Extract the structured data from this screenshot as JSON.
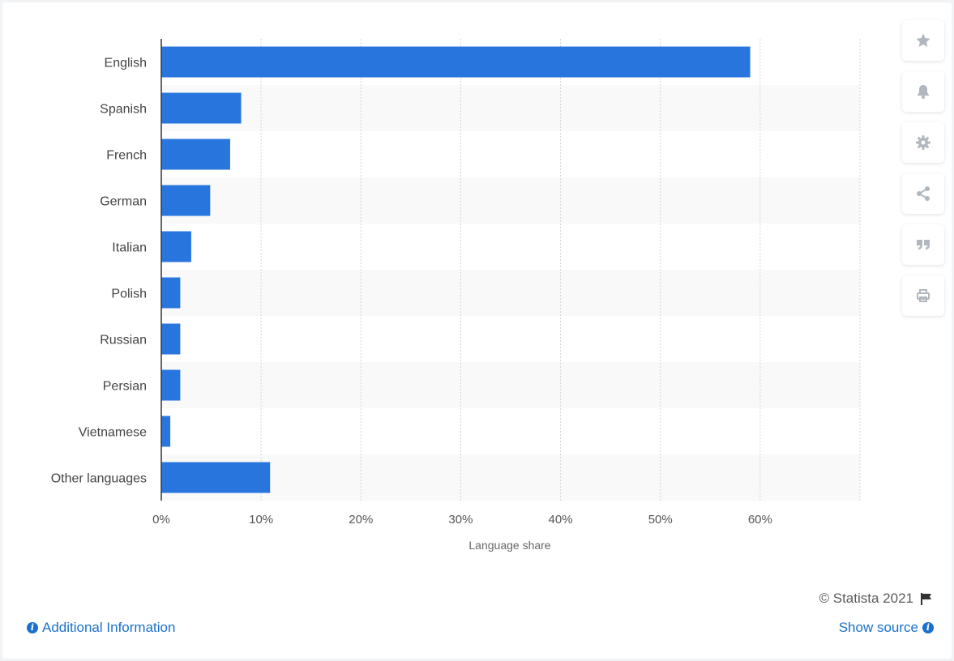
{
  "chart_data": {
    "type": "bar",
    "orientation": "horizontal",
    "categories": [
      "English",
      "Spanish",
      "French",
      "German",
      "Italian",
      "Polish",
      "Russian",
      "Persian",
      "Vietnamese",
      "Other languages"
    ],
    "values": [
      59,
      8,
      6.9,
      4.9,
      3,
      1.9,
      1.9,
      1.9,
      0.9,
      10.9
    ],
    "xlabel": "Language share",
    "ylabel": "",
    "xlim": [
      0,
      70
    ],
    "xticks": [
      "0%",
      "10%",
      "20%",
      "30%",
      "40%",
      "50%",
      "60%"
    ],
    "grid": true,
    "bar_color": "#2876dd",
    "stripe_color": "#f9f9f9"
  },
  "sidebar": {
    "buttons": [
      {
        "icon": "star-icon",
        "name": "favorite-button"
      },
      {
        "icon": "bell-icon",
        "name": "notification-button"
      },
      {
        "icon": "gear-icon",
        "name": "settings-button"
      },
      {
        "icon": "share-icon",
        "name": "share-button"
      },
      {
        "icon": "quote-icon",
        "name": "cite-button"
      },
      {
        "icon": "print-icon",
        "name": "print-button"
      }
    ],
    "icon_color": "#b1b7bf"
  },
  "footer": {
    "copyright": "© Statista 2021",
    "additional_info": "Additional Information",
    "show_source": "Show source",
    "link_color": "#1a70cc"
  }
}
